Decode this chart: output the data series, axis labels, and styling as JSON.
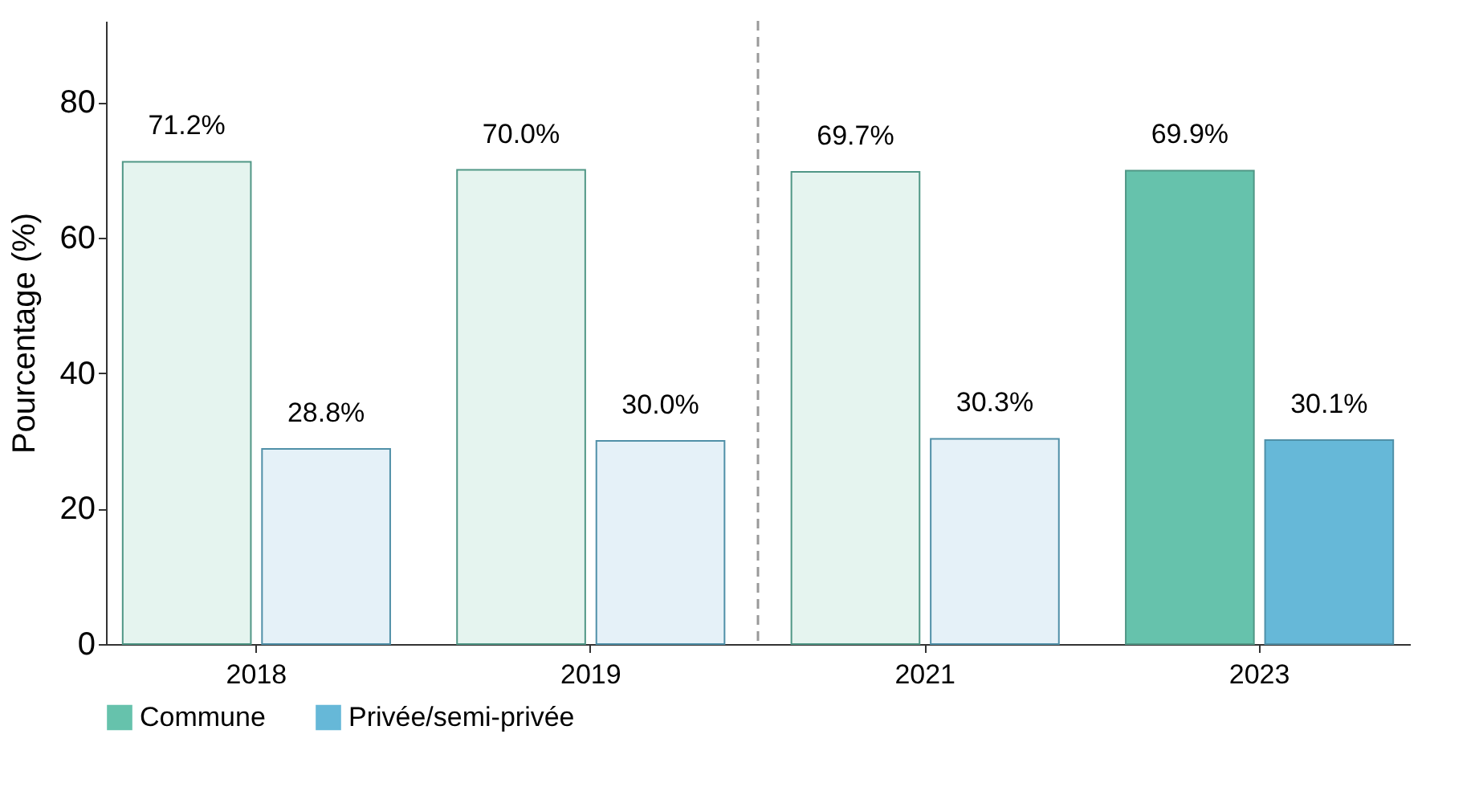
{
  "chart_data": {
    "type": "bar",
    "ylabel": "Pourcentage (%)",
    "categories": [
      "2018",
      "2019",
      "2021",
      "2023"
    ],
    "series": [
      {
        "name": "Commune",
        "color": "#66c2ac",
        "colors": [
          "#e5f4ef",
          "#e5f4ef",
          "#e5f4ef",
          "#66c2ac"
        ],
        "values": [
          71.2,
          70.0,
          69.7,
          69.9
        ],
        "value_labels": [
          "71.2%",
          "70.0%",
          "69.7%",
          "69.9%"
        ]
      },
      {
        "name": "Privée/semi-privée",
        "color": "#66b8d8",
        "colors": [
          "#e5f1f8",
          "#e5f1f8",
          "#e5f1f8",
          "#66b8d8"
        ],
        "values": [
          28.8,
          30.0,
          30.3,
          30.1
        ],
        "value_labels": [
          "28.8%",
          "30.0%",
          "30.3%",
          "30.1%"
        ]
      }
    ],
    "ylim": [
      0,
      92
    ],
    "yticks": [
      0,
      20,
      40,
      60,
      80
    ],
    "grid": false,
    "legend": "bottom"
  }
}
